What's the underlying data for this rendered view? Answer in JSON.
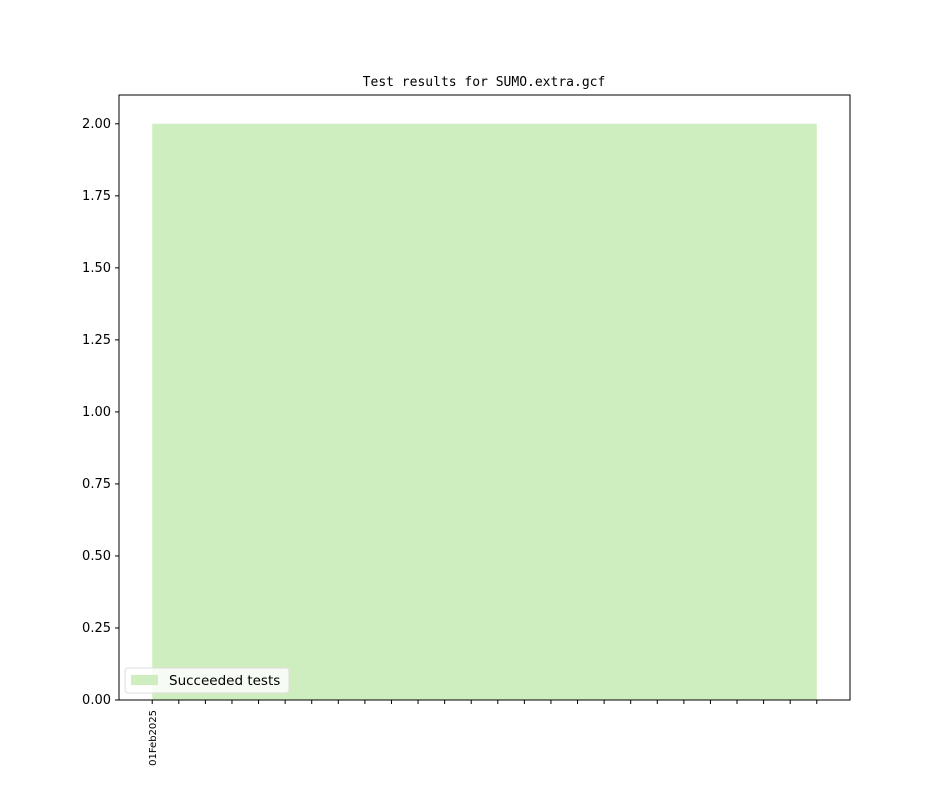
{
  "chart_data": {
    "type": "area",
    "title": "Test results for SUMO.extra.gcf",
    "xlabel": "",
    "ylabel": "",
    "x": [
      0,
      1,
      2,
      3,
      4,
      5,
      6,
      7,
      8,
      9,
      10,
      11,
      12,
      13,
      14,
      15,
      16,
      17,
      18,
      19,
      20,
      21,
      22,
      23,
      24,
      25
    ],
    "x_tick_labels": [
      "01Feb2025",
      "",
      "",
      "",
      "",
      "",
      "",
      "",
      "",
      "",
      "",
      "",
      "",
      "",
      "",
      "",
      "",
      "",
      "",
      "",
      "",
      "",
      "",
      "",
      "",
      ""
    ],
    "xlim": [
      -1.25,
      26.25
    ],
    "ylim": [
      0,
      2.1
    ],
    "yticks": [
      0,
      0.25,
      0.5,
      0.75,
      1.0,
      1.25,
      1.5,
      1.75,
      2.0
    ],
    "ytick_labels": [
      "0.00",
      "0.25",
      "0.50",
      "0.75",
      "1.00",
      "1.25",
      "1.50",
      "1.75",
      "2.00"
    ],
    "series": [
      {
        "name": "Succeeded tests",
        "color": "#cfeec0",
        "values": [
          2,
          2,
          2,
          2,
          2,
          2,
          2,
          2,
          2,
          2,
          2,
          2,
          2,
          2,
          2,
          2,
          2,
          2,
          2,
          2,
          2,
          2,
          2,
          2,
          2,
          2
        ]
      }
    ],
    "legend_placement": "lower-left",
    "grid": false
  }
}
